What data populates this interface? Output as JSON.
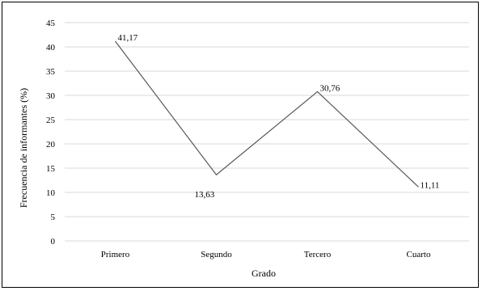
{
  "chart_data": {
    "type": "line",
    "categories": [
      "Primero",
      "Segundo",
      "Tercero",
      "Cuarto"
    ],
    "series": [
      {
        "values": [
          41.17,
          13.63,
          30.76,
          11.11
        ]
      }
    ],
    "data_labels": [
      "41,17",
      "13,63",
      "30,76",
      "11,11"
    ],
    "xlabel": "Grado",
    "ylabel": "Frecuencia  de informantes (%)",
    "ylim": [
      0,
      45
    ],
    "yticks": [
      0,
      5,
      10,
      15,
      20,
      25,
      30,
      35,
      40,
      45
    ],
    "grid": true,
    "line_color": "#595959"
  }
}
